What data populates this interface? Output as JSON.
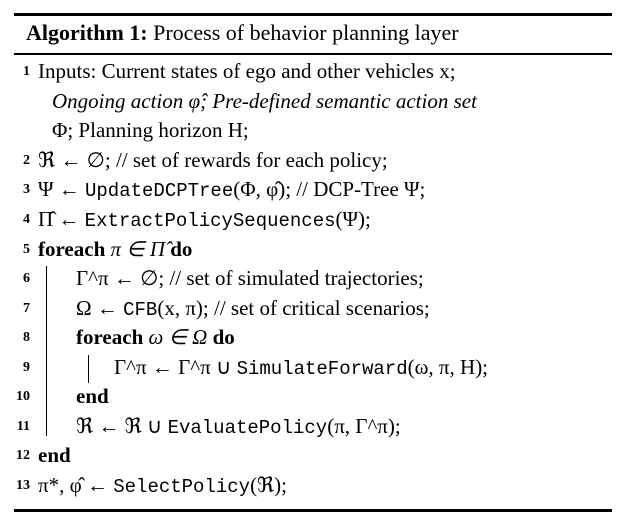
{
  "title": {
    "label": "Algorithm 1:",
    "text": "Process of behavior planning layer"
  },
  "lines": [
    {
      "num": "1",
      "text": "Inputs: Current states of ego and other vehicles x;"
    },
    {
      "num": "",
      "text": "Ongoing action φ̂; Pre-defined semantic action set"
    },
    {
      "num": "",
      "text": "Φ; Planning horizon H;"
    },
    {
      "num": "2",
      "text": "ℜ ← ∅; // set of rewards for each policy;"
    },
    {
      "num": "3",
      "pre": "Ψ ← ",
      "mono": "UpdateDCPTree",
      "post": "(Φ, φ̂); // DCP-Tree Ψ;"
    },
    {
      "num": "4",
      "pre": "Π̂ ← ",
      "mono": "ExtractPolicySequences",
      "post": "(Ψ);"
    },
    {
      "num": "5",
      "kw": "foreach",
      "mid": " π ∈ Π̂ ",
      "kw2": "do"
    },
    {
      "num": "6",
      "text": "Γ^π ← ∅; // set of simulated trajectories;"
    },
    {
      "num": "7",
      "pre": "Ω ← ",
      "mono": "CFB",
      "post": "(x, π); // set of critical scenarios;"
    },
    {
      "num": "8",
      "kw": "foreach",
      "mid": " ω ∈ Ω ",
      "kw2": "do"
    },
    {
      "num": "9",
      "pre": "Γ^π ← Γ^π ∪ ",
      "mono": "SimulateForward",
      "post": "(ω, π, H);"
    },
    {
      "num": "10",
      "kw": "end"
    },
    {
      "num": "11",
      "pre": "ℜ ← ℜ ∪ ",
      "mono": "EvaluatePolicy",
      "post": "(π, Γ^π);"
    },
    {
      "num": "12",
      "kw": "end"
    },
    {
      "num": "13",
      "pre": "π*, φ̂ ← ",
      "mono": "SelectPolicy",
      "post": "(ℜ);"
    }
  ]
}
